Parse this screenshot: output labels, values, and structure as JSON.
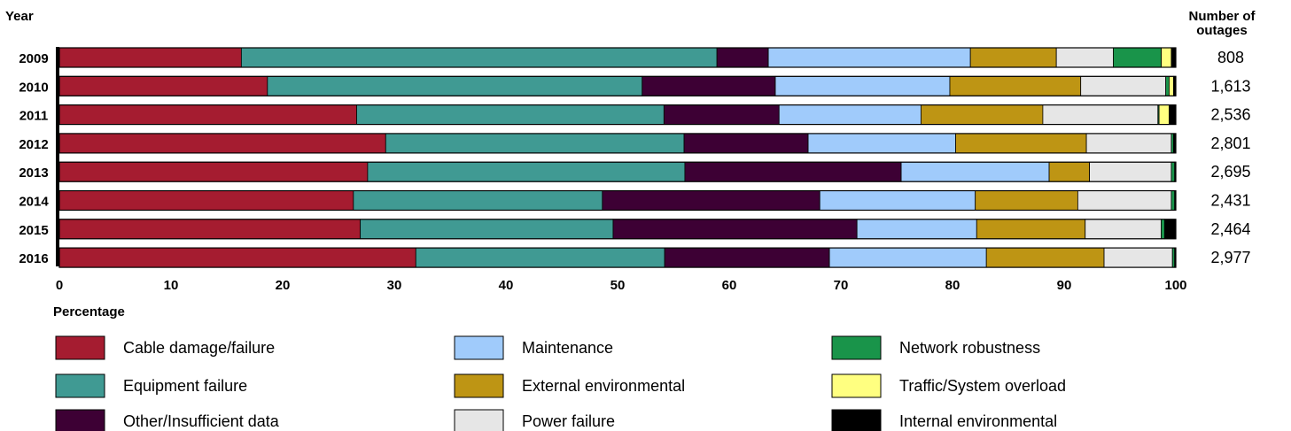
{
  "header": {
    "left_label": "Year",
    "right_label_line1": "Number of",
    "right_label_line2": "outages"
  },
  "xaxis_title": "Percentage",
  "chart_data": {
    "type": "bar",
    "orientation": "horizontal",
    "stacked": true,
    "xlabel": "Percentage",
    "ylabel": "Year",
    "xlim": [
      0,
      100
    ],
    "xticks": [
      "0",
      "10",
      "20",
      "30",
      "40",
      "50",
      "60",
      "70",
      "80",
      "90",
      "100"
    ],
    "grid": false,
    "legend_placement": "bottom",
    "categories": [
      "2009",
      "2010",
      "2011",
      "2012",
      "2013",
      "2014",
      "2015",
      "2016"
    ],
    "outages": [
      "808",
      "1,613",
      "2,536",
      "2,801",
      "2,695",
      "2,431",
      "2,464",
      "2,977"
    ],
    "series": [
      {
        "name": "Cable damage/failure",
        "color": "#a51c30",
        "values": [
          16.3,
          18.6,
          26.6,
          29.2,
          27.5,
          26.1,
          26.9,
          31.8
        ]
      },
      {
        "name": "Equipment failure",
        "color": "#409a93",
        "values": [
          42.6,
          33.5,
          27.5,
          26.7,
          28.3,
          22.1,
          22.6,
          22.2
        ]
      },
      {
        "name": "Other/Insufficient data",
        "color": "#3d0034",
        "values": [
          4.6,
          11.9,
          10.3,
          11.1,
          19.3,
          19.3,
          21.8,
          14.7
        ]
      },
      {
        "name": "Maintenance",
        "color": "#a0cbfb",
        "values": [
          18.1,
          15.6,
          12.7,
          13.2,
          13.2,
          13.8,
          10.7,
          14.0
        ]
      },
      {
        "name": "External environmental",
        "color": "#be9514",
        "values": [
          7.7,
          11.7,
          10.9,
          11.7,
          3.6,
          9.1,
          9.7,
          10.5
        ]
      },
      {
        "name": "Power failure",
        "color": "#e6e6e6",
        "values": [
          5.1,
          7.6,
          10.3,
          7.6,
          7.3,
          8.3,
          6.8,
          6.1
        ]
      },
      {
        "name": "Network robustness",
        "color": "#19944a",
        "values": [
          4.3,
          0.3,
          0.1,
          0.2,
          0.3,
          0.3,
          0.3,
          0.2
        ]
      },
      {
        "name": "Traffic/System overload",
        "color": "#ffff80",
        "values": [
          0.9,
          0.4,
          0.9,
          0.0,
          0.0,
          0.0,
          0.0,
          0.0
        ]
      },
      {
        "name": "Internal environmental",
        "color": "#000000",
        "values": [
          0.4,
          0.2,
          0.6,
          0.2,
          0.1,
          0.1,
          1.0,
          0.1
        ]
      }
    ]
  }
}
